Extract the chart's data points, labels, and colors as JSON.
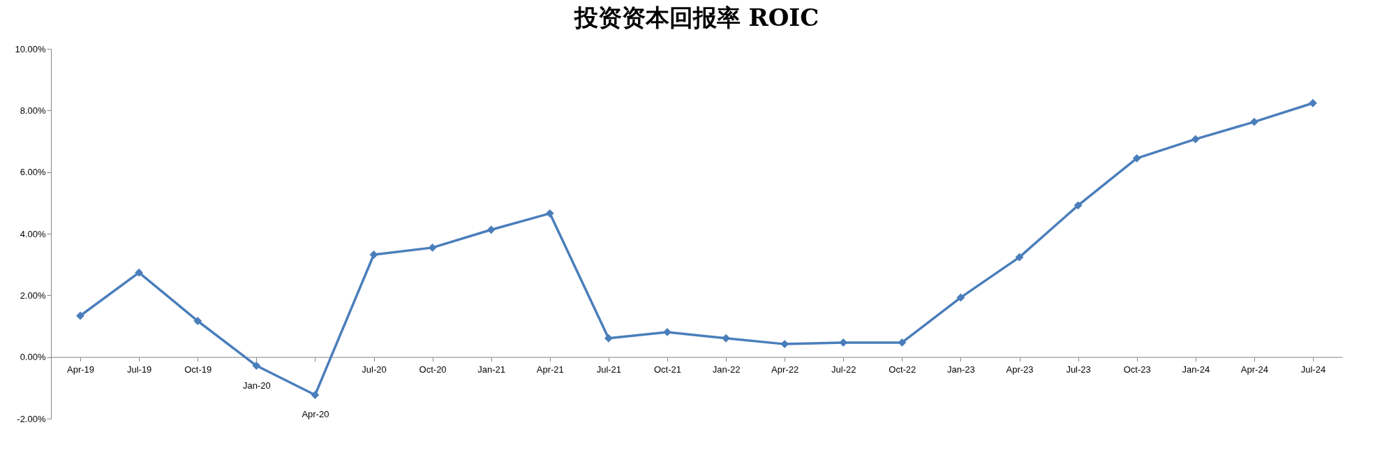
{
  "chart_data": {
    "type": "line",
    "title": "投资资本回报率 ROIC",
    "categories": [
      "Apr-19",
      "Jul-19",
      "Oct-19",
      "Jan-20",
      "Apr-20",
      "Jul-20",
      "Oct-20",
      "Jan-21",
      "Apr-21",
      "Jul-21",
      "Oct-21",
      "Jan-22",
      "Apr-22",
      "Jul-22",
      "Oct-22",
      "Jan-23",
      "Apr-23",
      "Jul-23",
      "Oct-23",
      "Jan-24",
      "Apr-24",
      "Jul-24"
    ],
    "series": [
      {
        "color": "#4a7ebb",
        "values": [
          1.34,
          2.74,
          1.17,
          -0.28,
          -1.23,
          3.32,
          3.55,
          4.13,
          4.66,
          0.61,
          0.81,
          0.61,
          0.42,
          0.47,
          0.47,
          1.93,
          3.24,
          4.92,
          6.45,
          7.07,
          7.63,
          8.24
        ]
      }
    ],
    "ylim": [
      -2,
      10
    ],
    "yticks": [
      {
        "value": -2,
        "label": "-2.00%"
      },
      {
        "value": 0,
        "label": "0.00%"
      },
      {
        "value": 2,
        "label": "2.00%"
      },
      {
        "value": 4,
        "label": "4.00%"
      },
      {
        "value": 6,
        "label": "6.00%"
      },
      {
        "value": 8,
        "label": "8.00%"
      },
      {
        "value": 10,
        "label": "10.00%"
      }
    ],
    "grid": false,
    "legend": false,
    "marker": "diamond",
    "line_style": "solid"
  }
}
